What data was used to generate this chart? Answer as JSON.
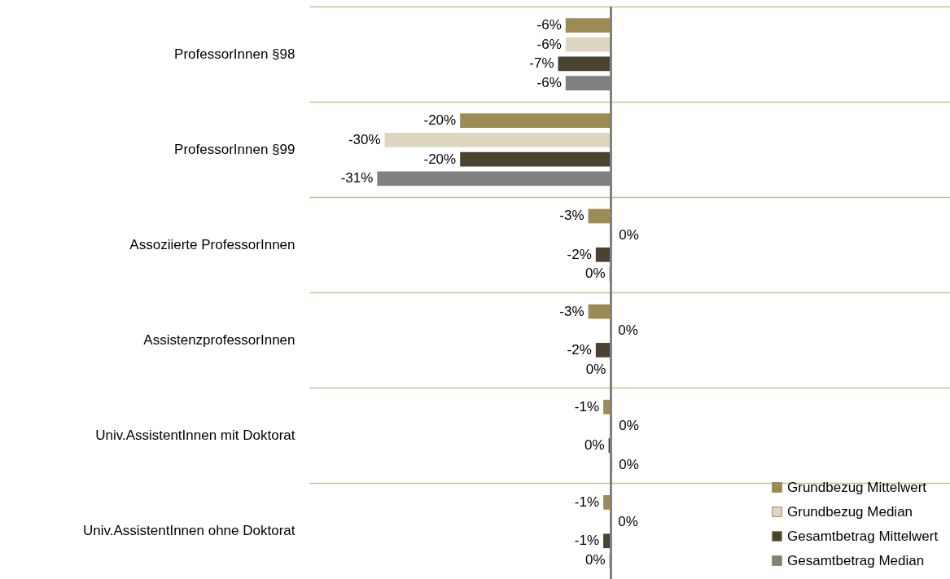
{
  "chart_data": {
    "type": "bar",
    "orientation": "horizontal",
    "categories": [
      "ProfessorInnen §98",
      "ProfessorInnen §99",
      "Assoziierte ProfessorInnen",
      "AssistenzprofessorInnen",
      "Univ.AssistentInnen mit Doktorat",
      "Univ.AssistentInnen ohne Doktorat"
    ],
    "series": [
      {
        "name": "Grundbezug Mittelwert",
        "color": "#9b8b55",
        "values": [
          -6,
          -20,
          -3,
          -3,
          -1,
          -1
        ],
        "value_labels": [
          "-6%",
          "-20%",
          "-3%",
          "-3%",
          "-1%",
          "-1%"
        ]
      },
      {
        "name": "Grundbezug Median",
        "color": "#ddd7c1",
        "values": [
          -6,
          -30,
          0.2,
          0.1,
          0.2,
          0.1
        ],
        "value_labels": [
          "-6%",
          "-30%",
          "0%",
          "0%",
          "0%",
          "0%"
        ]
      },
      {
        "name": "Gesamtbetrag Mittelwert",
        "color": "#4a4330",
        "values": [
          -7,
          -20,
          -2,
          -2,
          -0.3,
          -1
        ],
        "value_labels": [
          "-7%",
          "-20%",
          "-2%",
          "-2%",
          "0%",
          "-1%"
        ]
      },
      {
        "name": "Gesamtbetrag Median",
        "color": "#808080",
        "values": [
          -6,
          -31,
          -0.2,
          -0.1,
          0.2,
          -0.2
        ],
        "value_labels": [
          "-6%",
          "-31%",
          "0%",
          "0%",
          "0%",
          "0%"
        ]
      }
    ],
    "xlim": [
      -40,
      45
    ],
    "grid": "y",
    "legend": "bottom right"
  }
}
